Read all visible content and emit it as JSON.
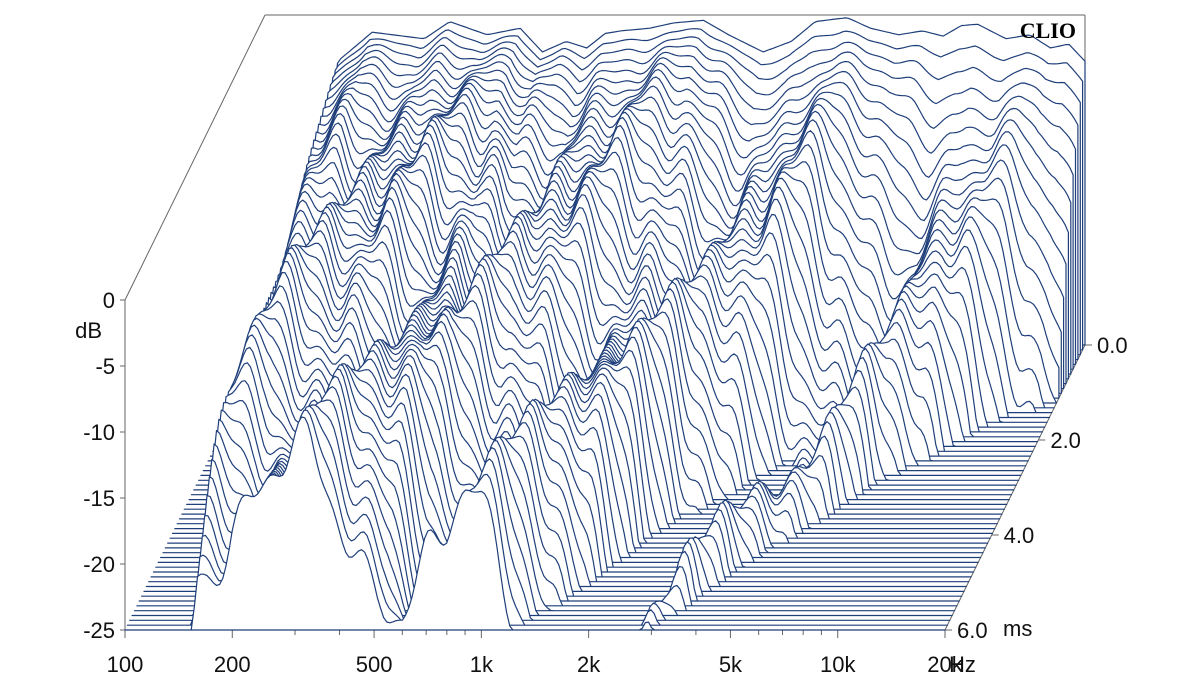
{
  "chart_data": {
    "type": "waterfall",
    "brand": "CLIO",
    "y_axis": {
      "label": "dB",
      "ticks": [
        "0",
        "-5",
        "-10",
        "-15",
        "-20",
        "-25"
      ],
      "tick_values": [
        0,
        -5,
        -10,
        -15,
        -20,
        -25
      ],
      "range": [
        -25,
        0
      ]
    },
    "frequency_axis": {
      "unit": "Hz",
      "scale": "log",
      "range": [
        100,
        20000
      ],
      "ticks": [
        "100",
        "200",
        "500",
        "1k",
        "2k",
        "5k",
        "10k",
        "20k"
      ],
      "tick_values": [
        100,
        200,
        500,
        1000,
        2000,
        5000,
        10000,
        20000
      ]
    },
    "time_axis": {
      "unit": "ms",
      "range": [
        0,
        6
      ],
      "ticks": [
        "0.0",
        "2.0",
        "4.0",
        "6.0"
      ],
      "tick_values": [
        0,
        2,
        4,
        6
      ]
    },
    "slice_count": 60,
    "colors": {
      "trace": "#1f3f7a",
      "fill": "#ffffff",
      "axis": "#666666"
    },
    "initial_response": [
      {
        "f": 100,
        "db": -25
      },
      {
        "f": 140,
        "db": -20
      },
      {
        "f": 160,
        "db": -3.5
      },
      {
        "f": 200,
        "db": -1.3
      },
      {
        "f": 280,
        "db": -1.8
      },
      {
        "f": 330,
        "db": -0.5
      },
      {
        "f": 420,
        "db": -1.5
      },
      {
        "f": 520,
        "db": -1.0
      },
      {
        "f": 600,
        "db": -2.8
      },
      {
        "f": 700,
        "db": -2.0
      },
      {
        "f": 800,
        "db": -2.5
      },
      {
        "f": 900,
        "db": -1.4
      },
      {
        "f": 1000,
        "db": -1.2
      },
      {
        "f": 1200,
        "db": -1.0
      },
      {
        "f": 1400,
        "db": -0.6
      },
      {
        "f": 1700,
        "db": -0.4
      },
      {
        "f": 2000,
        "db": -1.5
      },
      {
        "f": 2500,
        "db": -2.8
      },
      {
        "f": 3000,
        "db": -2.0
      },
      {
        "f": 3500,
        "db": -0.5
      },
      {
        "f": 4300,
        "db": -0.2
      },
      {
        "f": 5000,
        "db": -1.0
      },
      {
        "f": 6000,
        "db": -1.5
      },
      {
        "f": 7000,
        "db": -1.2
      },
      {
        "f": 8000,
        "db": -1.6
      },
      {
        "f": 9000,
        "db": -0.8
      },
      {
        "f": 10000,
        "db": -0.7
      },
      {
        "f": 12000,
        "db": -1.8
      },
      {
        "f": 14000,
        "db": -1.5
      },
      {
        "f": 16000,
        "db": -2.5
      },
      {
        "f": 18000,
        "db": -2.2
      },
      {
        "f": 20000,
        "db": -3.5
      },
      {
        "f": 23000,
        "db": -25
      }
    ],
    "decay_db_per_ms": [
      {
        "f": 100,
        "rate": 3.0
      },
      {
        "f": 200,
        "rate": 3.0
      },
      {
        "f": 500,
        "rate": 3.5
      },
      {
        "f": 1000,
        "rate": 4.5
      },
      {
        "f": 2000,
        "rate": 6.0
      },
      {
        "f": 5000,
        "rate": 10.0
      },
      {
        "f": 10000,
        "rate": 14.0
      },
      {
        "f": 20000,
        "rate": 18.0
      }
    ]
  }
}
